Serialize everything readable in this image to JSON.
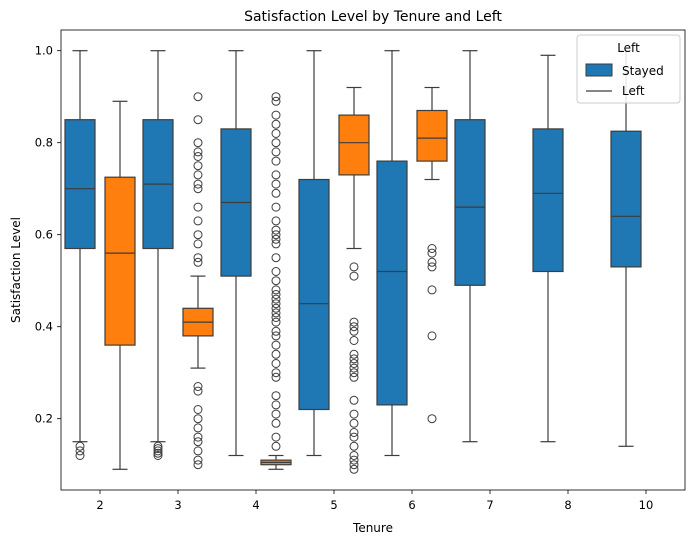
{
  "chart_data": {
    "type": "box",
    "title": "Satisfaction Level by Tenure and Left",
    "xlabel": "Tenure",
    "ylabel": "Satisfaction Level",
    "categories": [
      "2",
      "3",
      "4",
      "5",
      "6",
      "7",
      "8",
      "10"
    ],
    "ylim": [
      0.045,
      1.045
    ],
    "yticks": [
      0.2,
      0.4,
      0.6,
      0.8,
      1.0
    ],
    "ytick_labels": [
      "0.2",
      "0.4",
      "0.6",
      "0.8",
      "1.0"
    ],
    "grid": false,
    "legend": {
      "title": "Left",
      "placement": "top-right",
      "entries": [
        "Stayed",
        "Left"
      ]
    },
    "series": [
      {
        "name": "Stayed",
        "color": "#1f77b4",
        "boxes": [
          {
            "category": "2",
            "whisker_low": 0.15,
            "q1": 0.57,
            "median": 0.7,
            "q3": 0.85,
            "whisker_high": 1.0,
            "outliers": [
              0.12,
              0.13,
              0.14
            ]
          },
          {
            "category": "3",
            "whisker_low": 0.15,
            "q1": 0.57,
            "median": 0.71,
            "q3": 0.85,
            "whisker_high": 1.0,
            "outliers": [
              0.12,
              0.125,
              0.13,
              0.135,
              0.14
            ]
          },
          {
            "category": "4",
            "whisker_low": 0.12,
            "q1": 0.51,
            "median": 0.67,
            "q3": 0.83,
            "whisker_high": 1.0,
            "outliers": []
          },
          {
            "category": "5",
            "whisker_low": 0.12,
            "q1": 0.22,
            "median": 0.45,
            "q3": 0.72,
            "whisker_high": 1.0,
            "outliers": []
          },
          {
            "category": "6",
            "whisker_low": 0.12,
            "q1": 0.23,
            "median": 0.52,
            "q3": 0.76,
            "whisker_high": 1.0,
            "outliers": []
          },
          {
            "category": "7",
            "whisker_low": 0.15,
            "q1": 0.49,
            "median": 0.66,
            "q3": 0.85,
            "whisker_high": 1.0,
            "outliers": []
          },
          {
            "category": "8",
            "whisker_low": 0.15,
            "q1": 0.52,
            "median": 0.69,
            "q3": 0.83,
            "whisker_high": 0.99,
            "outliers": []
          },
          {
            "category": "10",
            "whisker_low": 0.14,
            "q1": 0.53,
            "median": 0.64,
            "q3": 0.825,
            "whisker_high": 1.0,
            "outliers": []
          }
        ]
      },
      {
        "name": "Left",
        "color": "#ff7f0e",
        "boxes": [
          {
            "category": "2",
            "whisker_low": 0.09,
            "q1": 0.36,
            "median": 0.56,
            "q3": 0.725,
            "whisker_high": 0.89,
            "outliers": []
          },
          {
            "category": "3",
            "whisker_low": 0.31,
            "q1": 0.38,
            "median": 0.41,
            "q3": 0.44,
            "whisker_high": 0.51,
            "outliers": [
              0.1,
              0.11,
              0.13,
              0.15,
              0.16,
              0.18,
              0.2,
              0.22,
              0.26,
              0.27,
              0.54,
              0.55,
              0.58,
              0.6,
              0.63,
              0.66,
              0.7,
              0.71,
              0.73,
              0.75,
              0.77,
              0.78,
              0.8,
              0.85,
              0.9
            ]
          },
          {
            "category": "4",
            "whisker_low": 0.09,
            "q1": 0.1,
            "median": 0.105,
            "q3": 0.11,
            "whisker_high": 0.12,
            "outliers": [
              0.14,
              0.16,
              0.19,
              0.21,
              0.23,
              0.25,
              0.29,
              0.3,
              0.32,
              0.34,
              0.36,
              0.38,
              0.39,
              0.41,
              0.42,
              0.43,
              0.44,
              0.45,
              0.46,
              0.47,
              0.48,
              0.5,
              0.52,
              0.55,
              0.58,
              0.59,
              0.6,
              0.61,
              0.63,
              0.66,
              0.69,
              0.71,
              0.73,
              0.76,
              0.78,
              0.8,
              0.82,
              0.84,
              0.86,
              0.89,
              0.9
            ]
          },
          {
            "category": "5",
            "whisker_low": 0.57,
            "q1": 0.73,
            "median": 0.8,
            "q3": 0.86,
            "whisker_high": 0.92,
            "outliers": [
              0.09,
              0.1,
              0.11,
              0.12,
              0.14,
              0.16,
              0.17,
              0.19,
              0.21,
              0.24,
              0.29,
              0.3,
              0.31,
              0.32,
              0.33,
              0.34,
              0.37,
              0.39,
              0.4,
              0.41,
              0.51,
              0.53
            ]
          },
          {
            "category": "6",
            "whisker_low": 0.72,
            "q1": 0.76,
            "median": 0.81,
            "q3": 0.87,
            "whisker_high": 0.92,
            "outliers": [
              0.2,
              0.38,
              0.48,
              0.53,
              0.54,
              0.56,
              0.57
            ]
          }
        ]
      }
    ]
  }
}
